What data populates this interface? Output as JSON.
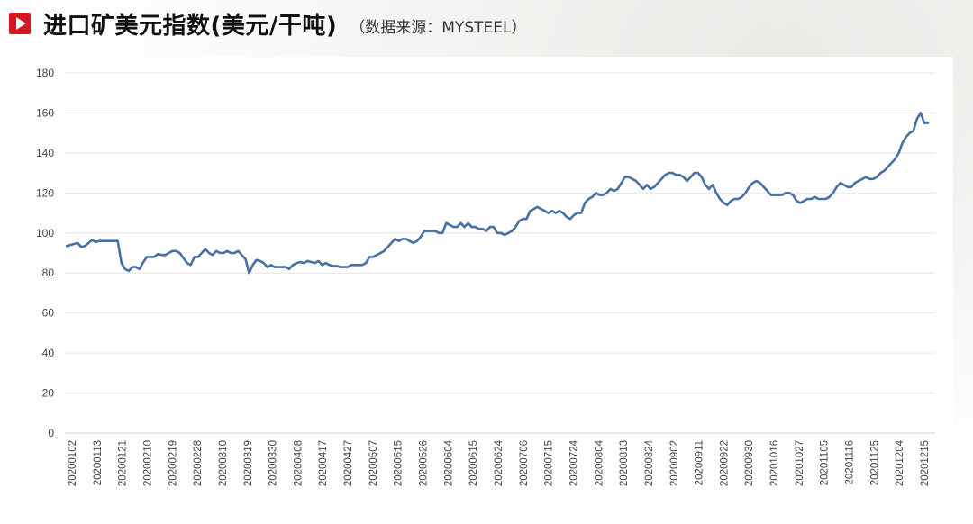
{
  "header": {
    "title": "进口矿美元指数(美元/干吨)",
    "subtitle": "（数据来源：MYSTEEL）"
  },
  "colors": {
    "line": "#4a6fa5",
    "accent": "#d7171f",
    "grid": "#e4e4e4"
  },
  "icons": {
    "header_marker": "play-icon"
  },
  "chart_data": {
    "type": "line",
    "title": "进口矿美元指数(美元/干吨)",
    "ylim": [
      0,
      180
    ],
    "yticks": [
      0,
      20,
      40,
      60,
      80,
      100,
      120,
      140,
      160,
      180
    ],
    "grid": true,
    "legend": "none",
    "xtick_labels": [
      "20200102",
      "20200113",
      "20200121",
      "20200210",
      "20200219",
      "20200228",
      "20200310",
      "20200319",
      "20200330",
      "20200408",
      "20200417",
      "20200427",
      "20200507",
      "20200515",
      "20200526",
      "20200604",
      "20200615",
      "20200624",
      "20200706",
      "20200715",
      "20200724",
      "20200804",
      "20200813",
      "20200824",
      "20200902",
      "20200911",
      "20200922",
      "20200930",
      "20201016",
      "20201027",
      "20201105",
      "20201116",
      "20201125",
      "20201204",
      "20201215"
    ],
    "series": [
      {
        "values": [
          93.5,
          94,
          94.5,
          95,
          93,
          93.5,
          95,
          96.5,
          95.5,
          96,
          96,
          96,
          96,
          96,
          96,
          85,
          82,
          81,
          83,
          83,
          82,
          85.5,
          88,
          88,
          88,
          89.5,
          89,
          89,
          90,
          91,
          91,
          90,
          87.5,
          85,
          84,
          88,
          88,
          90,
          92,
          90,
          89,
          91,
          90,
          90,
          91,
          90,
          90,
          91,
          89,
          87,
          80,
          84,
          86.5,
          86,
          85,
          83,
          84,
          83,
          83,
          83,
          83,
          82,
          84,
          85,
          85.5,
          85,
          86,
          85.5,
          85,
          86,
          84,
          85,
          84,
          83.5,
          83.5,
          83,
          83,
          83,
          84,
          84,
          84,
          84,
          85,
          88,
          88,
          89,
          90,
          91,
          93,
          95,
          97,
          96,
          97,
          97,
          96,
          95,
          96,
          98,
          101,
          101,
          101,
          101,
          100,
          100,
          105,
          104,
          103,
          103,
          105,
          103,
          105,
          103,
          103,
          102,
          102,
          101,
          103,
          103,
          100,
          100,
          99,
          100,
          101,
          103,
          106,
          107,
          107,
          111,
          112,
          113,
          112,
          111,
          110,
          111,
          110,
          111,
          110,
          108,
          107,
          109,
          110,
          110,
          115,
          117,
          118,
          120,
          119,
          119,
          120,
          122,
          121,
          122,
          125,
          128,
          128,
          127,
          126,
          124,
          122,
          124,
          122,
          123,
          125,
          127,
          129,
          130,
          130,
          129,
          129,
          128,
          126,
          128,
          130,
          130,
          128,
          124,
          122,
          124,
          120,
          117,
          115,
          114,
          116,
          117,
          117,
          118,
          120,
          123,
          125,
          126,
          125,
          123,
          121,
          119,
          119,
          119,
          119,
          120,
          120,
          119,
          116,
          115,
          116,
          117,
          117,
          118,
          117,
          117,
          117,
          118,
          120,
          123,
          125,
          124,
          123,
          123,
          125,
          126,
          127,
          128,
          127,
          127,
          128,
          130,
          131,
          133,
          135,
          137,
          140,
          145,
          148,
          150,
          151,
          157,
          160,
          155,
          155
        ]
      }
    ]
  }
}
